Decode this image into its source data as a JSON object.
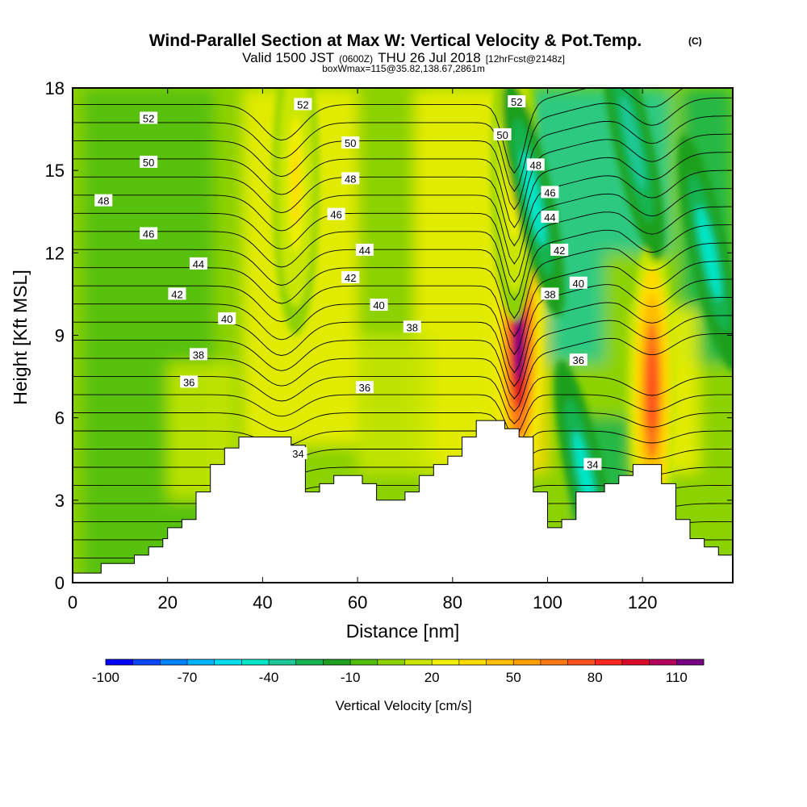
{
  "title": {
    "main": "Wind-Parallel Section at Max W: Vertical Velocity & Pot.Temp.",
    "copyright": "(C)",
    "valid_prefix": "Valid 1500 JST",
    "valid_utc": "(0600Z)",
    "valid_date": "THU 26 Jul 2018",
    "forecast": "[12hrFcst@2148z]",
    "box": "boxWmax=115@35.82,138.67,2861m"
  },
  "axes": {
    "xlabel": "Distance [nm]",
    "ylabel": "Height [Kft MSL]"
  },
  "colorbar": {
    "title": "Vertical Velocity [cm/s]",
    "tick_labels": [
      "-100",
      "-70",
      "-40",
      "-10",
      "20",
      "50",
      "80",
      "110"
    ]
  },
  "chart_data": {
    "type": "heatmap",
    "title": "Wind-Parallel Section at Max W: Vertical Velocity & Pot.Temp.",
    "xlabel": "Distance [nm]",
    "ylabel": "Height [Kft MSL]",
    "xlim": [
      0,
      139
    ],
    "ylim": [
      0,
      18
    ],
    "x_ticks": [
      0,
      20,
      40,
      60,
      80,
      100,
      120
    ],
    "y_ticks": [
      0,
      3,
      6,
      9,
      12,
      15,
      18
    ],
    "grid": false,
    "colorbar": {
      "label": "Vertical Velocity [cm/s]",
      "levels": [
        -100,
        -90,
        -80,
        -70,
        -60,
        -50,
        -40,
        -30,
        -20,
        -10,
        0,
        10,
        20,
        30,
        40,
        50,
        60,
        70,
        80,
        90,
        100,
        110,
        120
      ],
      "colors": [
        "#0000ff",
        "#0a46ff",
        "#0082ff",
        "#00b4ff",
        "#00dcf0",
        "#00e6c8",
        "#1ec896",
        "#14b450",
        "#1ea01e",
        "#50be0a",
        "#8cd200",
        "#c8e600",
        "#f0f000",
        "#ffdc00",
        "#ffbe00",
        "#ffa000",
        "#ff7814",
        "#ff501e",
        "#ff281e",
        "#dc0a28",
        "#b4005a",
        "#780082"
      ]
    },
    "theta_contours_label_values": [
      34,
      36,
      38,
      40,
      42,
      44,
      46,
      48,
      50,
      52
    ],
    "max_vertical_velocity": {
      "value": 115,
      "lat": 35.82,
      "lon": 138.67,
      "height_m": 2861
    },
    "terrain_top_kft": [
      [
        0,
        0.35
      ],
      [
        6,
        0.35
      ],
      [
        6,
        0.7
      ],
      [
        13,
        0.7
      ],
      [
        13,
        1.0
      ],
      [
        16,
        1.0
      ],
      [
        16,
        1.3
      ],
      [
        19,
        1.3
      ],
      [
        19,
        1.6
      ],
      [
        20,
        1.6
      ],
      [
        20,
        2.0
      ],
      [
        23,
        2.0
      ],
      [
        23,
        2.3
      ],
      [
        26,
        2.3
      ],
      [
        26,
        3.3
      ],
      [
        29,
        3.3
      ],
      [
        29,
        4.3
      ],
      [
        32,
        4.3
      ],
      [
        32,
        4.9
      ],
      [
        35,
        4.9
      ],
      [
        35,
        5.3
      ],
      [
        46,
        5.3
      ],
      [
        46,
        5.0
      ],
      [
        49,
        5.0
      ],
      [
        49,
        3.3
      ],
      [
        52,
        3.3
      ],
      [
        52,
        3.6
      ],
      [
        55,
        3.6
      ],
      [
        55,
        3.9
      ],
      [
        61,
        3.9
      ],
      [
        61,
        3.6
      ],
      [
        64,
        3.6
      ],
      [
        64,
        3.0
      ],
      [
        70,
        3.0
      ],
      [
        70,
        3.3
      ],
      [
        73,
        3.3
      ],
      [
        73,
        3.9
      ],
      [
        76,
        3.9
      ],
      [
        76,
        4.3
      ],
      [
        79,
        4.3
      ],
      [
        79,
        4.6
      ],
      [
        82,
        4.6
      ],
      [
        82,
        5.3
      ],
      [
        85,
        5.3
      ],
      [
        85,
        5.9
      ],
      [
        91,
        5.9
      ],
      [
        91,
        5.6
      ],
      [
        94,
        5.6
      ],
      [
        94,
        5.3
      ],
      [
        97,
        5.3
      ],
      [
        97,
        3.3
      ],
      [
        100,
        3.3
      ],
      [
        100,
        2.0
      ],
      [
        103,
        2.0
      ],
      [
        103,
        2.3
      ],
      [
        106,
        2.3
      ],
      [
        106,
        3.3
      ],
      [
        112,
        3.3
      ],
      [
        112,
        3.6
      ],
      [
        115,
        3.6
      ],
      [
        115,
        3.9
      ],
      [
        118,
        3.9
      ],
      [
        118,
        4.3
      ],
      [
        124,
        4.3
      ],
      [
        124,
        3.6
      ],
      [
        127,
        3.6
      ],
      [
        127,
        2.3
      ],
      [
        130,
        2.3
      ],
      [
        130,
        1.6
      ],
      [
        133,
        1.6
      ],
      [
        133,
        1.3
      ],
      [
        136,
        1.3
      ],
      [
        136,
        1.0
      ],
      [
        139,
        1.0
      ]
    ],
    "updraft_cores": [
      {
        "x": 94,
        "y": 8.8,
        "w_max": 115
      },
      {
        "x": 122,
        "y": 7.0,
        "w_max": 75
      },
      {
        "x": 93,
        "y": 15.0,
        "w_max": 30
      },
      {
        "x": 47,
        "y": 14.5,
        "w_max": 30
      }
    ],
    "downdraft_cores": [
      {
        "x": 97,
        "y": 14.0,
        "w_min": -45
      },
      {
        "x": 108,
        "y": 3.8,
        "w_min": -45
      },
      {
        "x": 134,
        "y": 12.0,
        "w_min": -45
      },
      {
        "x": 118,
        "y": 16.0,
        "w_min": -35
      }
    ],
    "contour_labels": [
      {
        "text": "52",
        "x": 16,
        "y": 16.9
      },
      {
        "text": "50",
        "x": 16,
        "y": 15.3
      },
      {
        "text": "48",
        "x": 6.5,
        "y": 13.9
      },
      {
        "text": "46",
        "x": 16,
        "y": 12.7
      },
      {
        "text": "44",
        "x": 26.5,
        "y": 11.6
      },
      {
        "text": "42",
        "x": 22,
        "y": 10.5
      },
      {
        "text": "40",
        "x": 32.5,
        "y": 9.6
      },
      {
        "text": "38",
        "x": 26.5,
        "y": 8.3
      },
      {
        "text": "36",
        "x": 24.5,
        "y": 7.3
      },
      {
        "text": "34",
        "x": 47.5,
        "y": 4.7
      },
      {
        "text": "52",
        "x": 48.5,
        "y": 17.4
      },
      {
        "text": "50",
        "x": 58.5,
        "y": 16.0
      },
      {
        "text": "48",
        "x": 58.5,
        "y": 14.7
      },
      {
        "text": "46",
        "x": 55.5,
        "y": 13.4
      },
      {
        "text": "44",
        "x": 61.5,
        "y": 12.1
      },
      {
        "text": "42",
        "x": 58.5,
        "y": 11.1
      },
      {
        "text": "40",
        "x": 64.5,
        "y": 10.1
      },
      {
        "text": "38",
        "x": 71.5,
        "y": 9.3
      },
      {
        "text": "36",
        "x": 61.5,
        "y": 7.1
      },
      {
        "text": "52",
        "x": 93.5,
        "y": 17.5
      },
      {
        "text": "50",
        "x": 90.5,
        "y": 16.3
      },
      {
        "text": "48",
        "x": 97.5,
        "y": 15.2
      },
      {
        "text": "46",
        "x": 100.5,
        "y": 14.2
      },
      {
        "text": "44",
        "x": 100.5,
        "y": 13.3
      },
      {
        "text": "42",
        "x": 102.5,
        "y": 12.1
      },
      {
        "text": "40",
        "x": 106.5,
        "y": 10.9
      },
      {
        "text": "38",
        "x": 100.5,
        "y": 10.5
      },
      {
        "text": "36",
        "x": 106.5,
        "y": 8.1
      },
      {
        "text": "34",
        "x": 109.5,
        "y": 4.3
      }
    ]
  }
}
